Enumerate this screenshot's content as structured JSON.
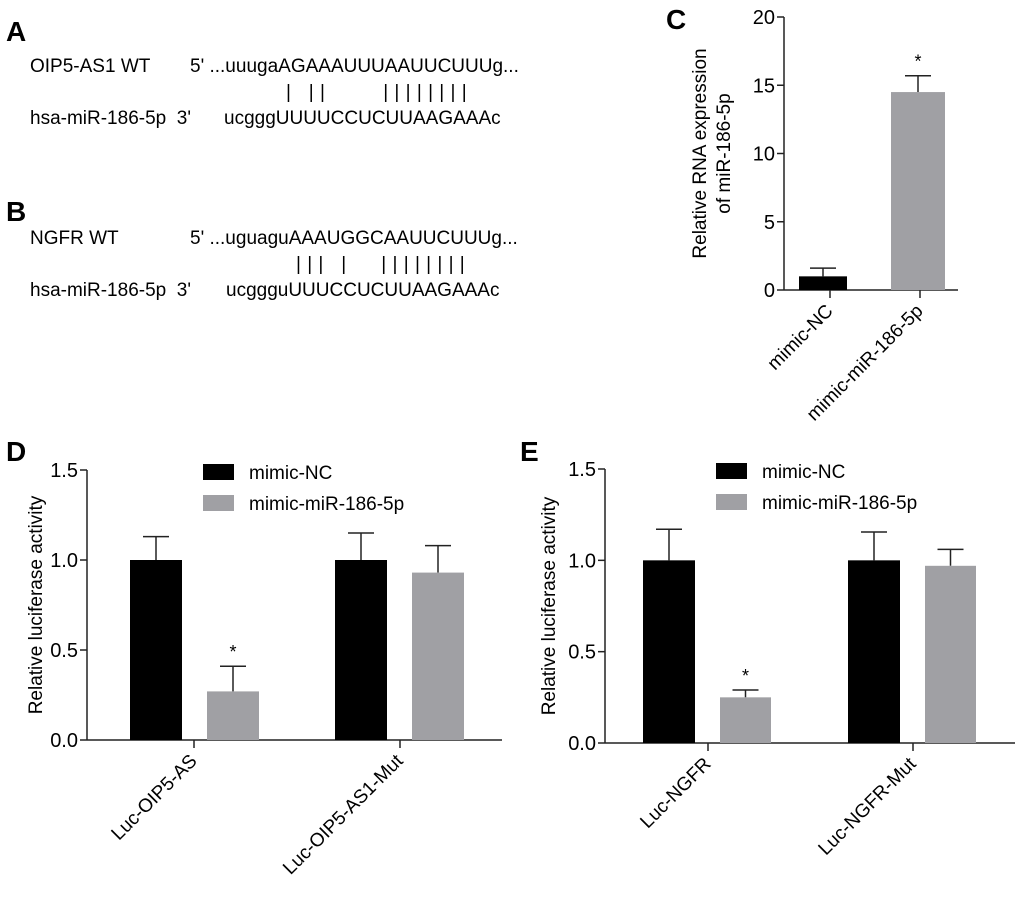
{
  "panels": {
    "A": "A",
    "B": "B",
    "C": "C",
    "D": "D",
    "E": "E"
  },
  "alignment_a": {
    "target_name": "OIP5-AS1 WT",
    "target_seq": "5' ...uuugaAGAAAUUUAAUUCUUUg...",
    "pairing": "|   | |          | | | | | | | |",
    "mirna_name": "hsa-miR-186-5p  3'",
    "mirna_seq": "ucgggUUUUCCUCUUAAGAAAc"
  },
  "alignment_b": {
    "target_name": "NGFR WT",
    "target_seq": "5' ...uguaguAAAUGGCAAUUCUUUg...",
    "pairing": "| | |   |      | | | | | | | |",
    "mirna_name": "hsa-miR-186-5p  3'",
    "mirna_seq": "ucggguUUUCCUCUUAAGAAAc"
  },
  "colors": {
    "nc": "#000000",
    "mimic": "#a0a0a4"
  },
  "chart_data": [
    {
      "panel": "C",
      "type": "bar",
      "categories": [
        "mimic-NC",
        "mimic-miR-186-5p"
      ],
      "values": [
        1.0,
        14.5
      ],
      "error_upper": [
        1.6,
        15.7
      ],
      "significance": [
        "",
        "*"
      ],
      "ylabel": "Relative RNA expression of miR-186-5p",
      "ylabel_lines": [
        "Relative RNA expression",
        "of miR-186-5p"
      ],
      "ylim": [
        0,
        20
      ],
      "yticks": [
        "0",
        "5",
        "10",
        "15",
        "20"
      ],
      "grid": false
    },
    {
      "panel": "D",
      "type": "bar",
      "categories": [
        "Luc-OIP5-AS",
        "Luc-OIP5-AS1-Mut"
      ],
      "series": [
        {
          "name": "mimic-NC",
          "values": [
            1.0,
            1.0
          ],
          "error_upper": [
            1.13,
            1.15
          ],
          "significance": [
            "",
            ""
          ]
        },
        {
          "name": "mimic-miR-186-5p",
          "values": [
            0.27,
            0.93
          ],
          "error_upper": [
            0.41,
            1.08
          ],
          "significance": [
            "*",
            ""
          ]
        }
      ],
      "ylabel": "Relative luciferase activity",
      "ylim": [
        0,
        1.5
      ],
      "yticks": [
        "0.0",
        "0.5",
        "1.0",
        "1.5"
      ],
      "legend": "top-center",
      "grid": false
    },
    {
      "panel": "E",
      "type": "bar",
      "categories": [
        "Luc-NGFR",
        "Luc-NGFR-Mut"
      ],
      "series": [
        {
          "name": "mimic-NC",
          "values": [
            1.0,
            1.0
          ],
          "error_upper": [
            1.17,
            1.155
          ],
          "significance": [
            "",
            ""
          ]
        },
        {
          "name": "mimic-miR-186-5p",
          "values": [
            0.25,
            0.97
          ],
          "error_upper": [
            0.29,
            1.06
          ],
          "significance": [
            "*",
            ""
          ]
        }
      ],
      "ylabel": "Relative luciferase activity",
      "ylim": [
        0,
        1.5
      ],
      "yticks": [
        "0.0",
        "0.5",
        "1.0",
        "1.5"
      ],
      "legend": "top-center",
      "grid": false
    }
  ]
}
